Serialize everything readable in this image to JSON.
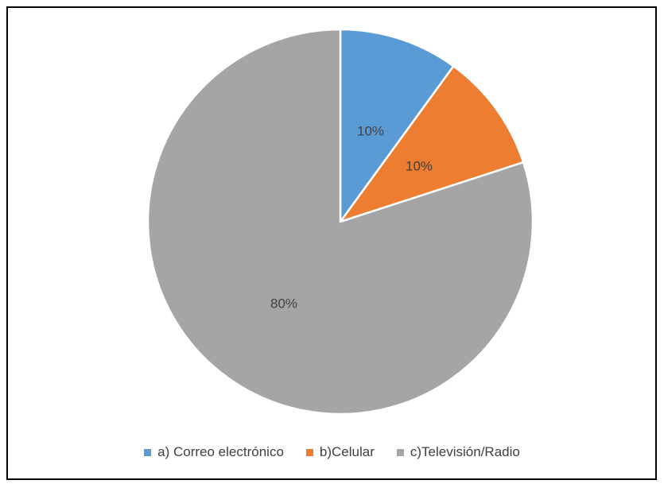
{
  "chart_data": {
    "type": "pie",
    "categories": [
      "a) Correo electrónico",
      "b)Celular",
      "c)Televisión/Radio"
    ],
    "values": [
      10,
      10,
      80
    ],
    "data_labels": [
      "10%",
      "10%",
      "80%"
    ],
    "colors": [
      "#5B9BD5",
      "#ED7D31",
      "#A5A5A5"
    ],
    "start_angle": "12 o'clock",
    "direction": "clockwise",
    "legend_position": "bottom"
  }
}
